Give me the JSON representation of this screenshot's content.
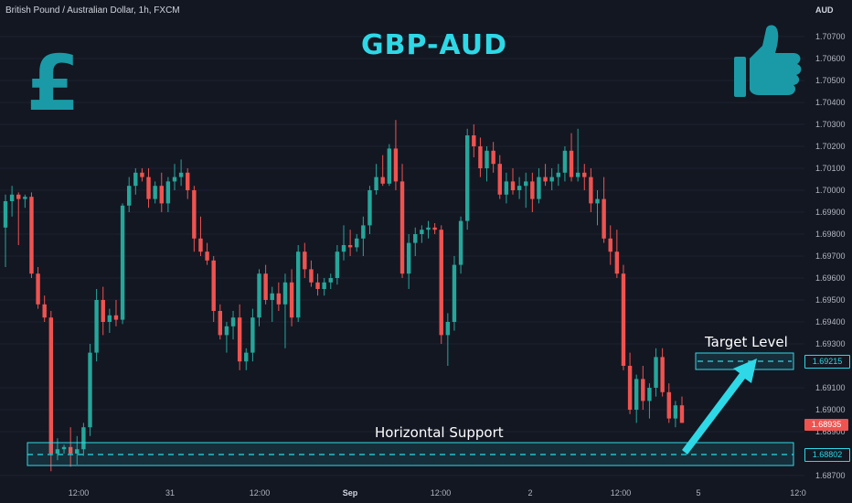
{
  "header": {
    "symbol_info": "British Pound / Australian Dollar, 1h, FXCM",
    "currency": "AUD"
  },
  "title": "GBP-AUD",
  "icons": {
    "left": "pound-sign-icon",
    "right": "thumbs-up-icon",
    "color": "#1a9aa6"
  },
  "colors": {
    "background": "#131722",
    "bull": "#26a69a",
    "bear": "#ef5350",
    "accent": "#2ed8e6",
    "axis_text": "#b2b5be"
  },
  "chart_data": {
    "type": "candlestick",
    "title": "GBP-AUD",
    "symbol": "British Pound / Australian Dollar",
    "timeframe": "1h",
    "source": "FXCM",
    "ylim": [
      1.687,
      1.7075
    ],
    "y_ticks": [
      "1.70700",
      "1.70600",
      "1.70500",
      "1.70400",
      "1.70300",
      "1.70200",
      "1.70100",
      "1.70000",
      "1.69900",
      "1.69800",
      "1.69700",
      "1.69600",
      "1.69500",
      "1.69400",
      "1.69300",
      "1.69100",
      "1.69000",
      "1.68900",
      "1.68700"
    ],
    "x_ticks": [
      "12:00",
      "31",
      "12:00",
      "Sep",
      "12:00",
      "2",
      "12:00",
      "5",
      "12:0"
    ],
    "candles": [
      [
        1.6983,
        1.6998,
        1.6965,
        1.6995
      ],
      [
        1.6995,
        1.7002,
        1.6988,
        1.6998
      ],
      [
        1.6998,
        1.6999,
        1.6975,
        1.6996
      ],
      [
        1.6996,
        1.6998,
        1.6992,
        1.6997
      ],
      [
        1.6997,
        1.6999,
        1.696,
        1.6962
      ],
      [
        1.6962,
        1.6965,
        1.6946,
        1.6948
      ],
      [
        1.6948,
        1.6952,
        1.694,
        1.6942
      ],
      [
        1.6942,
        1.6945,
        1.6872,
        1.688
      ],
      [
        1.688,
        1.6887,
        1.6877,
        1.6882
      ],
      [
        1.6882,
        1.6884,
        1.688,
        1.6883
      ],
      [
        1.6883,
        1.6892,
        1.6874,
        1.688
      ],
      [
        1.688,
        1.6888,
        1.6875,
        1.6882
      ],
      [
        1.6882,
        1.6894,
        1.6879,
        1.6892
      ],
      [
        1.6892,
        1.693,
        1.6888,
        1.6926
      ],
      [
        1.6926,
        1.6955,
        1.6922,
        1.695
      ],
      [
        1.695,
        1.6956,
        1.6934,
        1.694
      ],
      [
        1.694,
        1.6946,
        1.6935,
        1.6943
      ],
      [
        1.6943,
        1.695,
        1.6938,
        1.6941
      ],
      [
        1.6941,
        1.6994,
        1.6939,
        1.6993
      ],
      [
        1.6993,
        1.7006,
        1.699,
        1.7002
      ],
      [
        1.7002,
        1.701,
        1.6998,
        1.7008
      ],
      [
        1.7008,
        1.701,
        1.7004,
        1.7006
      ],
      [
        1.7006,
        1.701,
        1.6992,
        1.6996
      ],
      [
        1.6996,
        1.7004,
        1.6994,
        1.7002
      ],
      [
        1.7002,
        1.7008,
        1.699,
        1.6994
      ],
      [
        1.6994,
        1.7006,
        1.699,
        1.7004
      ],
      [
        1.7004,
        1.7012,
        1.7,
        1.7006
      ],
      [
        1.7006,
        1.7014,
        1.7002,
        1.7008
      ],
      [
        1.7008,
        1.701,
        1.6996,
        1.7
      ],
      [
        1.7,
        1.7002,
        1.6972,
        1.6978
      ],
      [
        1.6978,
        1.6988,
        1.697,
        1.6972
      ],
      [
        1.6972,
        1.6976,
        1.6966,
        1.6968
      ],
      [
        1.6968,
        1.697,
        1.694,
        1.6945
      ],
      [
        1.6945,
        1.6948,
        1.6932,
        1.6934
      ],
      [
        1.6934,
        1.694,
        1.6926,
        1.6938
      ],
      [
        1.6938,
        1.6945,
        1.6932,
        1.6942
      ],
      [
        1.6942,
        1.6948,
        1.6918,
        1.6922
      ],
      [
        1.6922,
        1.6928,
        1.6918,
        1.6926
      ],
      [
        1.6926,
        1.6946,
        1.6922,
        1.6942
      ],
      [
        1.6942,
        1.6964,
        1.6938,
        1.6962
      ],
      [
        1.6962,
        1.6966,
        1.6948,
        1.695
      ],
      [
        1.695,
        1.6956,
        1.694,
        1.6953
      ],
      [
        1.6953,
        1.6958,
        1.6945,
        1.6948
      ],
      [
        1.6948,
        1.6962,
        1.6928,
        1.6958
      ],
      [
        1.6958,
        1.6964,
        1.6938,
        1.6942
      ],
      [
        1.6942,
        1.6975,
        1.694,
        1.6972
      ],
      [
        1.6972,
        1.6976,
        1.696,
        1.6964
      ],
      [
        1.6964,
        1.6968,
        1.6956,
        1.6958
      ],
      [
        1.6958,
        1.6962,
        1.6952,
        1.6955
      ],
      [
        1.6955,
        1.696,
        1.6952,
        1.6958
      ],
      [
        1.6958,
        1.6962,
        1.6955,
        1.696
      ],
      [
        1.696,
        1.6975,
        1.6957,
        1.6972
      ],
      [
        1.6972,
        1.6984,
        1.6968,
        1.6975
      ],
      [
        1.6975,
        1.6982,
        1.697,
        1.6974
      ],
      [
        1.6974,
        1.698,
        1.6972,
        1.6978
      ],
      [
        1.6978,
        1.6988,
        1.697,
        1.6984
      ],
      [
        1.6984,
        1.7002,
        1.698,
        1.7
      ],
      [
        1.7,
        1.7012,
        1.6998,
        1.7006
      ],
      [
        1.7006,
        1.7016,
        1.7002,
        1.7003
      ],
      [
        1.7003,
        1.7021,
        1.7002,
        1.7019
      ],
      [
        1.7019,
        1.7032,
        1.7,
        1.7004
      ],
      [
        1.7004,
        1.7012,
        1.696,
        1.6962
      ],
      [
        1.6962,
        1.698,
        1.6955,
        1.6976
      ],
      [
        1.6976,
        1.6983,
        1.697,
        1.698
      ],
      [
        1.698,
        1.6984,
        1.6976,
        1.6982
      ],
      [
        1.6982,
        1.6986,
        1.6978,
        1.6983
      ],
      [
        1.6983,
        1.6985,
        1.698,
        1.6982
      ],
      [
        1.6982,
        1.6984,
        1.693,
        1.6934
      ],
      [
        1.6934,
        1.6944,
        1.692,
        1.694
      ],
      [
        1.694,
        1.697,
        1.6936,
        1.6966
      ],
      [
        1.6966,
        1.6988,
        1.6962,
        1.6986
      ],
      [
        1.6986,
        1.7028,
        1.6982,
        1.7025
      ],
      [
        1.7025,
        1.703,
        1.7015,
        1.702
      ],
      [
        1.702,
        1.7024,
        1.7006,
        1.701
      ],
      [
        1.701,
        1.702,
        1.7004,
        1.7018
      ],
      [
        1.7018,
        1.7022,
        1.7008,
        1.7012
      ],
      [
        1.7012,
        1.7016,
        1.6996,
        1.6998
      ],
      [
        1.6998,
        1.7008,
        1.6994,
        1.7004
      ],
      [
        1.7004,
        1.701,
        1.6998,
        1.7
      ],
      [
        1.7,
        1.7006,
        1.6996,
        1.7002
      ],
      [
        1.7002,
        1.7008,
        1.6992,
        1.7004
      ],
      [
        1.7004,
        1.7008,
        1.699,
        1.6996
      ],
      [
        1.6996,
        1.701,
        1.6994,
        1.7006
      ],
      [
        1.7006,
        1.7012,
        1.7002,
        1.7004
      ],
      [
        1.7004,
        1.701,
        1.7,
        1.7006
      ],
      [
        1.7006,
        1.7012,
        1.7002,
        1.7008
      ],
      [
        1.7008,
        1.702,
        1.7004,
        1.7018
      ],
      [
        1.7018,
        1.7026,
        1.7004,
        1.7006
      ],
      [
        1.7006,
        1.7028,
        1.7004,
        1.7008
      ],
      [
        1.7008,
        1.7012,
        1.7,
        1.7006
      ],
      [
        1.7006,
        1.701,
        1.699,
        1.6994
      ],
      [
        1.6994,
        1.7,
        1.6984,
        1.6996
      ],
      [
        1.6996,
        1.7006,
        1.6976,
        1.6978
      ],
      [
        1.6978,
        1.6984,
        1.6966,
        1.6972
      ],
      [
        1.6972,
        1.6982,
        1.696,
        1.6962
      ],
      [
        1.6962,
        1.6966,
        1.6918,
        1.692
      ],
      [
        1.692,
        1.6926,
        1.6898,
        1.69
      ],
      [
        1.69,
        1.6916,
        1.6894,
        1.6914
      ],
      [
        1.6914,
        1.692,
        1.69,
        1.6904
      ],
      [
        1.6904,
        1.6912,
        1.6896,
        1.691
      ],
      [
        1.691,
        1.6928,
        1.6906,
        1.6924
      ],
      [
        1.6924,
        1.6928,
        1.6906,
        1.6908
      ],
      [
        1.6908,
        1.6912,
        1.6894,
        1.6896
      ],
      [
        1.6896,
        1.6904,
        1.6892,
        1.6902
      ],
      [
        1.6902,
        1.6906,
        1.6894,
        1.6894
      ]
    ],
    "current_price": "1.68935",
    "annotations": [
      {
        "label": "Horizontal Support",
        "price": 1.688,
        "price_label": "1.68802"
      },
      {
        "label": "Target Level",
        "price": 1.6922,
        "price_label": "1.69215"
      }
    ]
  }
}
